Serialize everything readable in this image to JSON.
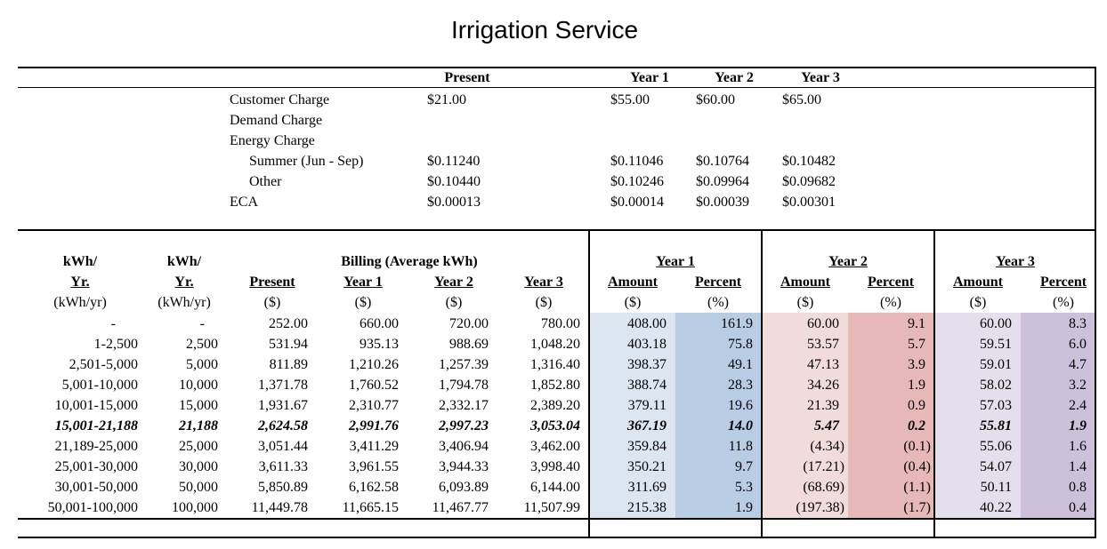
{
  "title": "Irrigation Service",
  "rates": {
    "headers": [
      "Present",
      "Year 1",
      "Year 2",
      "Year 3"
    ],
    "rows": [
      {
        "label": "Customer Charge",
        "indent": false,
        "values": [
          "$21.00",
          "$55.00",
          "$60.00",
          "$65.00"
        ]
      },
      {
        "label": "Demand Charge",
        "indent": false,
        "values": [
          "",
          "",
          "",
          ""
        ]
      },
      {
        "label": "Energy Charge",
        "indent": false,
        "values": [
          "",
          "",
          "",
          ""
        ]
      },
      {
        "label": "Summer (Jun - Sep)",
        "indent": true,
        "values": [
          "$0.11240",
          "$0.11046",
          "$0.10764",
          "$0.10482"
        ]
      },
      {
        "label": "Other",
        "indent": true,
        "values": [
          "$0.10440",
          "$0.10246",
          "$0.09964",
          "$0.09682"
        ]
      },
      {
        "label": "ECA",
        "indent": false,
        "values": [
          "$0.00013",
          "$0.00014",
          "$0.00039",
          "$0.00301"
        ]
      }
    ]
  },
  "billing": {
    "headers": {
      "col1": [
        "kWh/",
        "Yr.",
        "(kWh/yr)"
      ],
      "col2": [
        "kWh/",
        "Yr.",
        "(kWh/yr)"
      ],
      "billing_group": "Billing (Average kWh)",
      "present": [
        "Present",
        "($)"
      ],
      "year1": [
        "Year 1",
        "($)"
      ],
      "year2": [
        "Year 2",
        "($)"
      ],
      "year3": [
        "Year 3",
        "($)"
      ],
      "change_groups": [
        "Year 1",
        "Year 2",
        "Year 3"
      ],
      "amount": [
        "Amount",
        "($)"
      ],
      "percent": [
        "Percent",
        "(%)"
      ]
    },
    "rows": [
      {
        "range": "-",
        "kwh": "-",
        "present": "252.00",
        "y1": "660.00",
        "y2": "720.00",
        "y3": "780.00",
        "a1": "408.00",
        "p1": "161.9",
        "a2": "60.00",
        "p2": "9.1",
        "a3": "60.00",
        "p3": "8.3",
        "bold": false
      },
      {
        "range": "1-2,500",
        "kwh": "2,500",
        "present": "531.94",
        "y1": "935.13",
        "y2": "988.69",
        "y3": "1,048.20",
        "a1": "403.18",
        "p1": "75.8",
        "a2": "53.57",
        "p2": "5.7",
        "a3": "59.51",
        "p3": "6.0",
        "bold": false
      },
      {
        "range": "2,501-5,000",
        "kwh": "5,000",
        "present": "811.89",
        "y1": "1,210.26",
        "y2": "1,257.39",
        "y3": "1,316.40",
        "a1": "398.37",
        "p1": "49.1",
        "a2": "47.13",
        "p2": "3.9",
        "a3": "59.01",
        "p3": "4.7",
        "bold": false
      },
      {
        "range": "5,001-10,000",
        "kwh": "10,000",
        "present": "1,371.78",
        "y1": "1,760.52",
        "y2": "1,794.78",
        "y3": "1,852.80",
        "a1": "388.74",
        "p1": "28.3",
        "a2": "34.26",
        "p2": "1.9",
        "a3": "58.02",
        "p3": "3.2",
        "bold": false
      },
      {
        "range": "10,001-15,000",
        "kwh": "15,000",
        "present": "1,931.67",
        "y1": "2,310.77",
        "y2": "2,332.17",
        "y3": "2,389.20",
        "a1": "379.11",
        "p1": "19.6",
        "a2": "21.39",
        "p2": "0.9",
        "a3": "57.03",
        "p3": "2.4",
        "bold": false
      },
      {
        "range": "15,001-21,188",
        "kwh": "21,188",
        "present": "2,624.58",
        "y1": "2,991.76",
        "y2": "2,997.23",
        "y3": "3,053.04",
        "a1": "367.19",
        "p1": "14.0",
        "a2": "5.47",
        "p2": "0.2",
        "a3": "55.81",
        "p3": "1.9",
        "bold": true
      },
      {
        "range": "21,189-25,000",
        "kwh": "25,000",
        "present": "3,051.44",
        "y1": "3,411.29",
        "y2": "3,406.94",
        "y3": "3,462.00",
        "a1": "359.84",
        "p1": "11.8",
        "a2": "(4.34)",
        "p2": "(0.1)",
        "a3": "55.06",
        "p3": "1.6",
        "bold": false
      },
      {
        "range": "25,001-30,000",
        "kwh": "30,000",
        "present": "3,611.33",
        "y1": "3,961.55",
        "y2": "3,944.33",
        "y3": "3,998.40",
        "a1": "350.21",
        "p1": "9.7",
        "a2": "(17.21)",
        "p2": "(0.4)",
        "a3": "54.07",
        "p3": "1.4",
        "bold": false
      },
      {
        "range": "30,001-50,000",
        "kwh": "50,000",
        "present": "5,850.89",
        "y1": "6,162.58",
        "y2": "6,093.89",
        "y3": "6,144.00",
        "a1": "311.69",
        "p1": "5.3",
        "a2": "(68.69)",
        "p2": "(1.1)",
        "a3": "50.11",
        "p3": "0.8",
        "bold": false
      },
      {
        "range": "50,001-100,000",
        "kwh": "100,000",
        "present": "11,449.78",
        "y1": "11,665.15",
        "y2": "11,467.77",
        "y3": "11,507.99",
        "a1": "215.38",
        "p1": "1.9",
        "a2": "(197.38)",
        "p2": "(1.7)",
        "a3": "40.22",
        "p3": "0.4",
        "bold": false
      }
    ]
  },
  "colors": {
    "y1_amount_bg": "#dce6f1",
    "y1_percent_bg": "#b8cce4",
    "y2_amount_bg": "#f2dcdb",
    "y2_percent_bg": "#e6b8b7",
    "y3_amount_bg": "#e4dfec",
    "y3_percent_bg": "#ccc0da"
  }
}
